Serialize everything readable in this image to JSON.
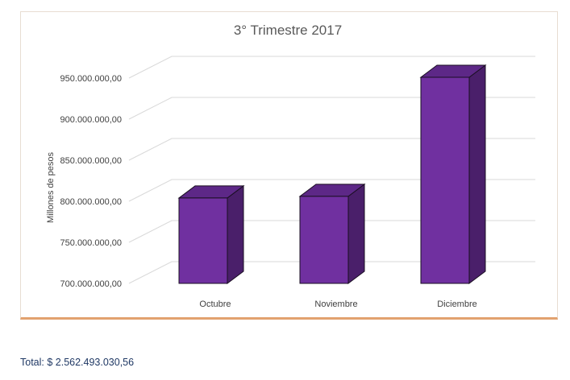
{
  "chart_data": {
    "type": "bar",
    "title": "3° Trimestre 2017",
    "xlabel": "",
    "ylabel": "Millones de pesos",
    "categories": [
      "Octubre",
      "Noviembre",
      "Diciembre"
    ],
    "values": [
      804000000,
      806000000,
      951000000
    ],
    "ylim": [
      700000000,
      950000000
    ],
    "yticks": [
      700000000,
      750000000,
      800000000,
      850000000,
      900000000,
      950000000
    ],
    "ytick_labels": [
      "700.000.000,00",
      "750.000.000,00",
      "800.000.000,00",
      "850.000.000,00",
      "900.000.000,00",
      "950.000.000,00"
    ],
    "grid": true,
    "legend": "none",
    "bar_style": "3d-column",
    "colors": {
      "front": "#7030a0",
      "side": "#4a1f6a",
      "top": "#5d2887",
      "outline": "#1a0f22",
      "grid": "#d9d9d9",
      "text": "#404040"
    }
  },
  "footer": {
    "total": "Total: $ 2.562.493.030,56"
  }
}
